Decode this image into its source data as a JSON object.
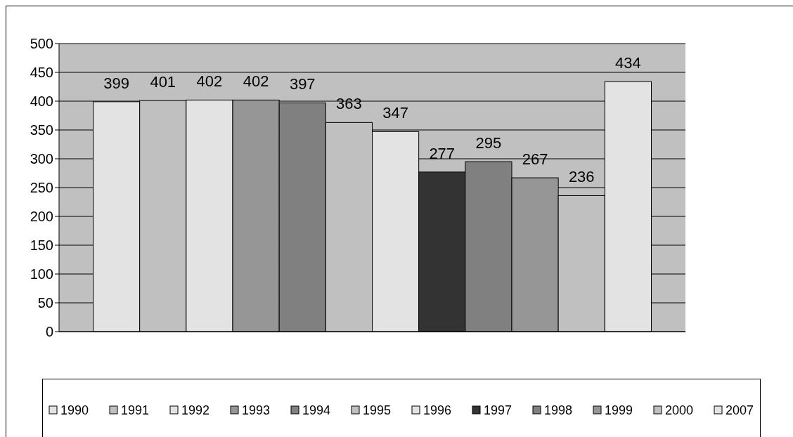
{
  "chart_data": {
    "type": "bar",
    "categories": [
      null
    ],
    "ylim": [
      0,
      500
    ],
    "yticks": [
      0,
      50,
      100,
      150,
      200,
      250,
      300,
      350,
      400,
      450,
      500
    ],
    "grid": "y",
    "legend": "bottom",
    "data_labels": true,
    "series": [
      {
        "name": "1990",
        "color": "#e3e3e3",
        "values": [
          399
        ]
      },
      {
        "name": "1991",
        "color": "#c0c0c0",
        "values": [
          401
        ]
      },
      {
        "name": "1992",
        "color": "#e3e3e3",
        "values": [
          402
        ]
      },
      {
        "name": "1993",
        "color": "#969696",
        "values": [
          402
        ]
      },
      {
        "name": "1994",
        "color": "#808080",
        "values": [
          397
        ]
      },
      {
        "name": "1995",
        "color": "#c0c0c0",
        "values": [
          363
        ]
      },
      {
        "name": "1996",
        "color": "#e3e3e3",
        "values": [
          347
        ]
      },
      {
        "name": "1997",
        "color": "#333333",
        "values": [
          277
        ]
      },
      {
        "name": "1998",
        "color": "#808080",
        "values": [
          295
        ]
      },
      {
        "name": "1999",
        "color": "#969696",
        "values": [
          267
        ]
      },
      {
        "name": "2000",
        "color": "#c0c0c0",
        "values": [
          236
        ]
      },
      {
        "name": "2007",
        "color": "#e3e3e3",
        "values": [
          434
        ]
      }
    ]
  }
}
